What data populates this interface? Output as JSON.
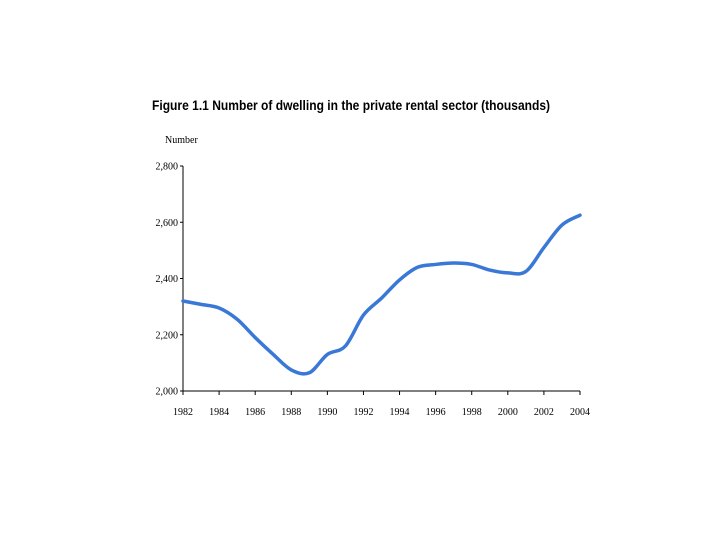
{
  "chart_data": {
    "type": "line",
    "title": "Figure 1.1 Number of dwelling in the private rental sector (thousands)",
    "ylabel": "Number",
    "xlabel": "",
    "ylim": [
      2000,
      2800
    ],
    "xlim": [
      1982,
      2004
    ],
    "yticks": [
      "2,000",
      "2,200",
      "2,400",
      "2,600",
      "2,800"
    ],
    "xticks": [
      "1982",
      "1984",
      "1986",
      "1988",
      "1990",
      "1992",
      "1994",
      "1996",
      "1998",
      "2000",
      "2002",
      "2004"
    ],
    "grid": false,
    "line_color": "#3a78d8",
    "series": [
      {
        "x": [
          1982,
          1983,
          1984,
          1985,
          1986,
          1987,
          1988,
          1989,
          1990,
          1991,
          1992,
          1993,
          1994,
          1995,
          1996,
          1997,
          1998,
          1999,
          2000,
          2001,
          2002,
          2003,
          2004
        ],
        "values": [
          2320,
          2308,
          2295,
          2255,
          2190,
          2130,
          2075,
          2065,
          2130,
          2160,
          2270,
          2330,
          2395,
          2440,
          2450,
          2455,
          2450,
          2430,
          2420,
          2425,
          2510,
          2590,
          2625
        ]
      }
    ]
  }
}
